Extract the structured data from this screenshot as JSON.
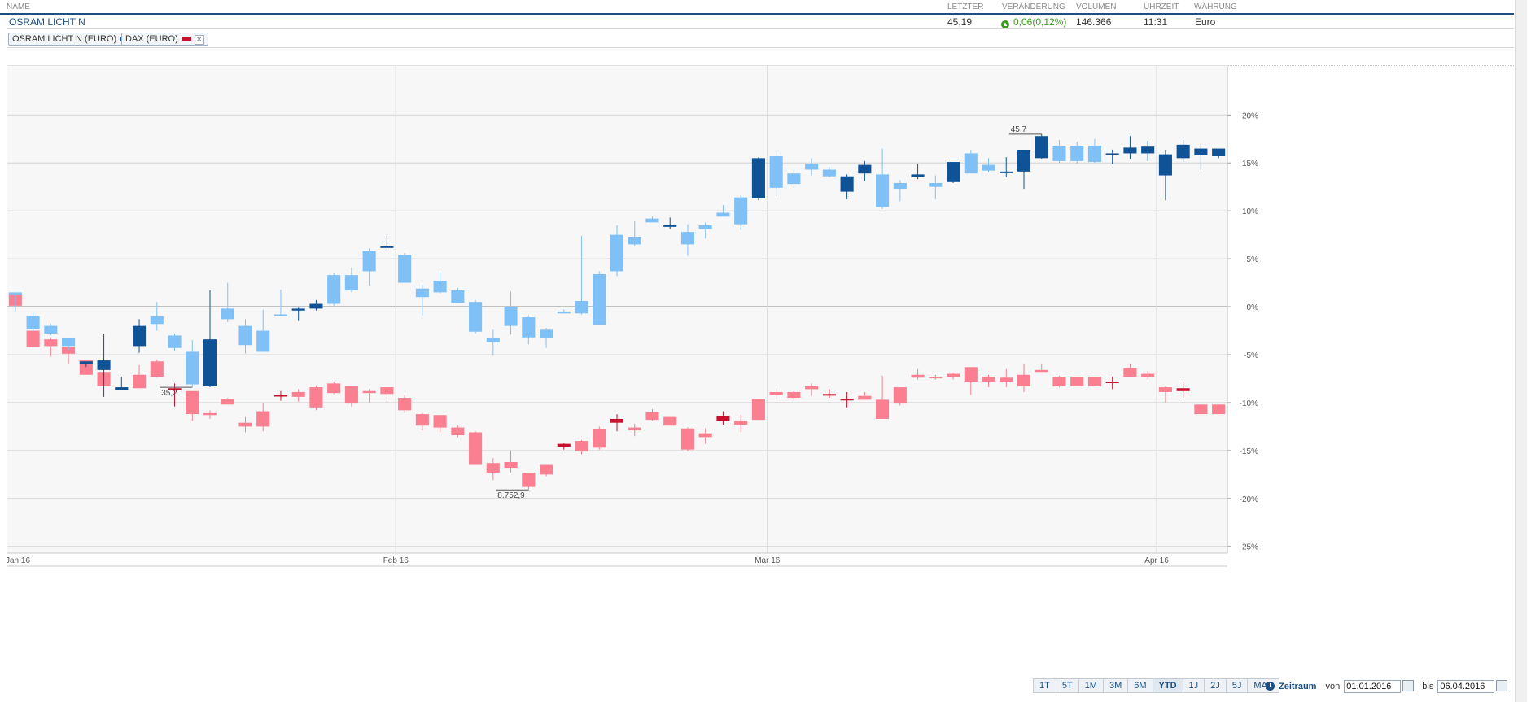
{
  "header": {
    "name": "NAME",
    "last": "LETZTER",
    "change": "VERÄNDERUNG",
    "volume": "VOLUMEN",
    "time": "UHRZEIT",
    "currency": "WÄHRUNG"
  },
  "quote": {
    "name": "OSRAM LICHT N",
    "last": "45,19",
    "change": "0,06(0,12%)",
    "volume": "146.366",
    "time": "11:31",
    "currency": "Euro"
  },
  "legend": [
    {
      "label": "OSRAM LICHT N (EURO)",
      "color": "#0f5296"
    },
    {
      "label": "DAX (EURO)",
      "color": "#c8102e"
    }
  ],
  "toolbar": {
    "buttons": [
      "1T",
      "5T",
      "1M",
      "3M",
      "6M",
      "YTD",
      "1J",
      "2J",
      "5J",
      "MAX"
    ],
    "active": "YTD",
    "period_label": "Zeitraum",
    "from_label": "von",
    "from_date": "01.01.2016",
    "to_label": "bis",
    "to_date": "06.04.2016"
  },
  "colors": {
    "osram_up": "#0f5296",
    "osram_down": "#7fc1f7",
    "dax_up": "#c8102e",
    "dax_down": "#f97f91",
    "grid": "#d4d4d4",
    "plot_bg": "#f7f7f7"
  },
  "chart_data": {
    "type": "candlestick",
    "x_ticks": [
      "Jan 16",
      "Feb 16",
      "Mar 16",
      "Apr 16"
    ],
    "x_tick_index": [
      0,
      22,
      43,
      65
    ],
    "y_ticks": [
      20,
      15,
      10,
      5,
      0,
      -5,
      -10,
      -15,
      -20,
      -25
    ],
    "y_tick_labels": [
      "20%",
      "15%",
      "10%",
      "5%",
      "0%",
      "-5%",
      "-10%",
      "-15%",
      "-20%",
      "-25%"
    ],
    "ylim": [
      -25.7,
      25.2
    ],
    "annotations": [
      {
        "series": "OSRAM LICHT N (EURO)",
        "text": "45,7"
      },
      {
        "series": "OSRAM LICHT N (EURO)",
        "text": "35,2"
      },
      {
        "series": "DAX (EURO)",
        "text": "8.752,9"
      }
    ],
    "series": [
      {
        "name": "OSRAM LICHT N (EURO)",
        "ohlc": [
          [
            1.5,
            1.5,
            -0.5,
            1.2
          ],
          [
            -1.0,
            -0.7,
            -2.5,
            -2.3
          ],
          [
            -2.0,
            -1.8,
            -3.0,
            -2.8
          ],
          [
            -3.3,
            -3.3,
            -4.5,
            -4.1
          ],
          [
            -6.0,
            -5.8,
            -6.3,
            -5.7
          ],
          [
            -6.6,
            -2.8,
            -9.4,
            -5.6
          ],
          [
            -8.7,
            -7.3,
            -8.7,
            -8.4
          ],
          [
            -4.1,
            -1.3,
            -4.8,
            -2.0
          ],
          [
            -1.0,
            0.5,
            -2.5,
            -1.8
          ],
          [
            -3.0,
            -2.8,
            -4.6,
            -4.3
          ],
          [
            -4.7,
            -3.5,
            -8.4,
            -8.1
          ],
          [
            -8.3,
            1.7,
            -8.4,
            -3.4
          ],
          [
            -0.2,
            2.5,
            -1.6,
            -1.3
          ],
          [
            -2.0,
            -1.3,
            -4.9,
            -4.0
          ],
          [
            -2.5,
            -0.3,
            -4.5,
            -4.7
          ],
          [
            -0.8,
            1.8,
            -1.0,
            -1.0
          ],
          [
            -0.4,
            -0.1,
            -1.5,
            -0.2
          ],
          [
            -0.2,
            0.7,
            -0.4,
            0.3
          ],
          [
            3.3,
            3.5,
            0.1,
            0.3
          ],
          [
            3.3,
            4.1,
            1.5,
            1.7
          ],
          [
            5.8,
            6.1,
            2.2,
            3.7
          ],
          [
            6.2,
            7.4,
            5.9,
            6.3
          ],
          [
            5.4,
            5.6,
            2.5,
            2.5
          ],
          [
            1.9,
            2.3,
            -0.9,
            1.0
          ],
          [
            2.7,
            3.6,
            1.4,
            1.5
          ],
          [
            1.7,
            2.0,
            0.4,
            0.4
          ],
          [
            0.5,
            0.7,
            -2.8,
            -2.6
          ],
          [
            -3.3,
            -2.4,
            -5.1,
            -3.7
          ],
          [
            0.0,
            1.6,
            -2.9,
            -2.0
          ],
          [
            -1.1,
            -0.9,
            -3.9,
            -3.2
          ],
          [
            -2.4,
            -2.2,
            -4.3,
            -3.3
          ],
          [
            -0.5,
            -0.3,
            -0.7,
            -0.7
          ],
          [
            0.6,
            7.4,
            -0.8,
            -0.7
          ],
          [
            3.4,
            3.7,
            -1.9,
            -1.9
          ],
          [
            7.5,
            8.5,
            3.2,
            3.7
          ],
          [
            7.3,
            8.9,
            6.3,
            6.5
          ],
          [
            9.2,
            9.4,
            9.0,
            8.8
          ],
          [
            8.4,
            9.3,
            8.1,
            8.5
          ],
          [
            7.8,
            8.6,
            5.3,
            6.5
          ],
          [
            8.5,
            8.8,
            7.1,
            8.1
          ],
          [
            9.8,
            10.6,
            9.7,
            9.4
          ],
          [
            11.4,
            11.6,
            8.0,
            8.6
          ],
          [
            11.3,
            15.6,
            11.1,
            15.5
          ],
          [
            15.7,
            16.3,
            11.5,
            12.4
          ],
          [
            13.9,
            14.3,
            12.4,
            12.8
          ],
          [
            14.9,
            15.5,
            13.7,
            14.3
          ],
          [
            14.3,
            14.6,
            13.5,
            13.6
          ],
          [
            12.0,
            13.8,
            11.2,
            13.6
          ],
          [
            13.9,
            15.2,
            13.1,
            14.8
          ],
          [
            13.8,
            16.5,
            10.2,
            10.4
          ],
          [
            12.9,
            13.2,
            11.0,
            12.3
          ],
          [
            13.5,
            14.9,
            13.3,
            13.8
          ],
          [
            12.9,
            13.7,
            11.2,
            12.5
          ],
          [
            13.0,
            15.1,
            12.9,
            15.1
          ],
          [
            16.0,
            16.3,
            13.9,
            13.9
          ],
          [
            14.8,
            15.5,
            14.0,
            14.2
          ],
          [
            14.0,
            15.6,
            13.5,
            14.1
          ],
          [
            14.1,
            16.3,
            12.3,
            16.3
          ],
          [
            15.5,
            18.0,
            15.4,
            17.8
          ],
          [
            16.8,
            17.4,
            15.0,
            15.2
          ],
          [
            16.8,
            17.2,
            14.9,
            15.2
          ],
          [
            16.8,
            17.5,
            15.0,
            15.1
          ],
          [
            16.0,
            16.4,
            14.9,
            16.0
          ],
          [
            16.0,
            17.8,
            15.4,
            16.6
          ],
          [
            16.0,
            17.3,
            15.2,
            16.7
          ],
          [
            13.7,
            16.3,
            11.1,
            15.9
          ],
          [
            15.5,
            17.4,
            15.1,
            16.9
          ],
          [
            15.8,
            17.0,
            14.3,
            16.5
          ],
          [
            15.7,
            16.5,
            15.5,
            16.5
          ]
        ]
      },
      {
        "name": "DAX (EURO)",
        "ohlc": [
          [
            1.3,
            1.3,
            -0.2,
            0.1
          ],
          [
            -2.5,
            -2.1,
            -4.2,
            -4.2
          ],
          [
            -3.4,
            -3.2,
            -5.2,
            -4.1
          ],
          [
            -4.2,
            -3.8,
            -6.0,
            -4.9
          ],
          [
            -5.6,
            -5.6,
            -7.1,
            -7.1
          ],
          [
            -6.8,
            -6.8,
            -8.3,
            -8.3
          ],
          [
            -8.6,
            -8.5,
            -8.6,
            -8.5
          ],
          [
            -7.1,
            -6.1,
            -8.5,
            -8.5
          ],
          [
            -5.7,
            -5.5,
            -7.4,
            -7.3
          ],
          [
            -8.5,
            -8.0,
            -10.4,
            -8.5
          ],
          [
            -8.8,
            -8.8,
            -11.9,
            -11.2
          ],
          [
            -11.1,
            -10.8,
            -11.7,
            -11.3
          ],
          [
            -9.6,
            -9.5,
            -10.2,
            -10.2
          ],
          [
            -12.1,
            -11.5,
            -13.1,
            -12.5
          ],
          [
            -10.9,
            -10.1,
            -13.0,
            -12.5
          ],
          [
            -9.2,
            -8.8,
            -9.8,
            -9.2
          ],
          [
            -8.9,
            -8.6,
            -9.9,
            -9.4
          ],
          [
            -8.4,
            -8.2,
            -10.8,
            -10.5
          ],
          [
            -8.0,
            -7.8,
            -9.1,
            -9.0
          ],
          [
            -8.3,
            -8.3,
            -10.4,
            -10.1
          ],
          [
            -8.8,
            -8.6,
            -10.0,
            -9.0
          ],
          [
            -8.4,
            -8.4,
            -10.0,
            -9.1
          ],
          [
            -9.5,
            -9.2,
            -11.1,
            -10.8
          ],
          [
            -11.2,
            -11.1,
            -12.9,
            -12.4
          ],
          [
            -11.3,
            -11.3,
            -13.1,
            -12.6
          ],
          [
            -12.6,
            -12.4,
            -13.6,
            -13.4
          ],
          [
            -13.1,
            -13.0,
            -16.5,
            -16.5
          ],
          [
            -16.3,
            -15.8,
            -18.1,
            -17.3
          ],
          [
            -16.2,
            -15.0,
            -17.3,
            -16.8
          ],
          [
            -17.3,
            -17.3,
            -19.1,
            -18.8
          ],
          [
            -16.5,
            -16.5,
            -17.7,
            -17.5
          ],
          [
            -14.6,
            -14.2,
            -14.9,
            -14.3
          ],
          [
            -14.0,
            -13.9,
            -15.4,
            -15.1
          ],
          [
            -12.8,
            -12.5,
            -14.9,
            -14.7
          ],
          [
            -12.1,
            -11.2,
            -13.0,
            -11.7
          ],
          [
            -12.6,
            -12.2,
            -13.5,
            -12.9
          ],
          [
            -11.0,
            -10.7,
            -11.9,
            -11.8
          ],
          [
            -11.5,
            -11.5,
            -12.3,
            -12.4
          ],
          [
            -12.7,
            -12.6,
            -15.1,
            -14.9
          ],
          [
            -13.2,
            -12.7,
            -14.3,
            -13.6
          ],
          [
            -11.9,
            -10.9,
            -12.3,
            -11.4
          ],
          [
            -11.9,
            -11.3,
            -13.1,
            -12.3
          ],
          [
            -9.6,
            -9.6,
            -11.8,
            -11.8
          ],
          [
            -8.9,
            -8.5,
            -9.7,
            -9.2
          ],
          [
            -8.9,
            -8.8,
            -9.8,
            -9.5
          ],
          [
            -8.3,
            -8.0,
            -9.3,
            -8.6
          ],
          [
            -9.1,
            -8.6,
            -9.5,
            -9.1
          ],
          [
            -9.7,
            -8.9,
            -10.5,
            -9.6
          ],
          [
            -9.3,
            -8.9,
            -9.6,
            -9.7
          ],
          [
            -9.7,
            -7.2,
            -11.4,
            -11.7
          ],
          [
            -8.4,
            -8.4,
            -10.3,
            -10.1
          ],
          [
            -7.1,
            -6.5,
            -7.6,
            -7.4
          ],
          [
            -7.3,
            -7.1,
            -7.6,
            -7.4
          ],
          [
            -7.0,
            -6.9,
            -7.6,
            -7.3
          ],
          [
            -6.3,
            -6.3,
            -9.2,
            -7.8
          ],
          [
            -7.3,
            -7.1,
            -8.4,
            -7.8
          ],
          [
            -7.4,
            -6.5,
            -8.4,
            -7.8
          ],
          [
            -7.1,
            -6.0,
            -8.9,
            -8.3
          ],
          [
            -6.6,
            -6.0,
            -6.8,
            -6.8
          ],
          [
            -7.3,
            -7.2,
            -8.4,
            -8.3
          ],
          [
            -7.3,
            -7.3,
            -8.3,
            -8.3
          ],
          [
            -7.3,
            -7.3,
            -8.3,
            -8.3
          ],
          [
            -7.8,
            -7.3,
            -8.6,
            -7.8
          ],
          [
            -6.4,
            -6.0,
            -7.3,
            -7.3
          ],
          [
            -7.0,
            -6.7,
            -7.6,
            -7.3
          ],
          [
            -8.4,
            -8.3,
            -10.0,
            -8.9
          ],
          [
            -8.8,
            -7.8,
            -9.5,
            -8.5
          ],
          [
            -10.2,
            -10.2,
            -11.2,
            -11.2
          ],
          [
            -10.2,
            -10.2,
            -11.2,
            -11.2
          ]
        ]
      }
    ]
  }
}
